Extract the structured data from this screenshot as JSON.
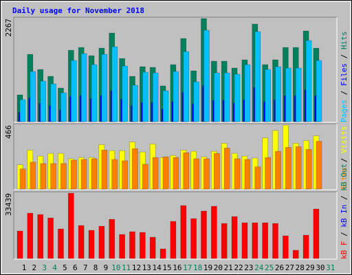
{
  "title": "Daily usage for November 2018",
  "chart_data": [
    {
      "type": "bar",
      "ylim": [
        0,
        2267
      ],
      "yticks": [
        2267
      ],
      "separator": " / ",
      "series": [
        {
          "name": "Hits",
          "color": "#00805c",
          "values": [
            589,
            1481,
            1148,
            997,
            740,
            1571,
            1632,
            1451,
            1617,
            1949,
            1390,
            997,
            1209,
            1194,
            786,
            1254,
            1829,
            1118,
            2267,
            1330,
            1330,
            1179,
            1360,
            2146,
            1254,
            1360,
            1632,
            1632,
            1995,
            1617,
            null
          ]
        },
        {
          "name": "Files",
          "color": "#0000ff",
          "values": [
            210,
            520,
            400,
            350,
            260,
            550,
            570,
            510,
            570,
            680,
            490,
            350,
            420,
            420,
            280,
            440,
            640,
            390,
            790,
            470,
            470,
            410,
            480,
            750,
            440,
            480,
            570,
            570,
            700,
            570,
            null
          ]
        },
        {
          "name": "Pages",
          "color": "#00c0ff",
          "values": [
            484,
            1103,
            892,
            831,
            635,
            1345,
            1496,
            1254,
            1481,
            1647,
            1224,
            801,
            1088,
            1073,
            680,
            1103,
            1541,
            876,
            2010,
            1073,
            1073,
            1043,
            1254,
            1979,
            1148,
            1209,
            1179,
            1179,
            1783,
            1345,
            null
          ]
        }
      ]
    },
    {
      "type": "bar",
      "ylim": [
        0,
        466
      ],
      "yticks": [
        466
      ],
      "separator": " / ",
      "series": [
        {
          "name": "Visits",
          "color": "#ffff00",
          "values": [
            177,
            284,
            240,
            260,
            260,
            221,
            230,
            230,
            324,
            280,
            280,
            343,
            270,
            329,
            230,
            245,
            284,
            275,
            235,
            275,
            334,
            260,
            240,
            226,
            373,
            427,
            466,
            334,
            353,
            388,
            null
          ]
        },
        {
          "name": "Sites",
          "color": "#ff8000",
          "values": [
            147,
            196,
            186,
            186,
            186,
            211,
            216,
            221,
            284,
            216,
            206,
            294,
            181,
            230,
            235,
            230,
            265,
            221,
            221,
            260,
            299,
            221,
            216,
            162,
            230,
            275,
            304,
            309,
            289,
            348,
            null
          ]
        }
      ]
    },
    {
      "type": "bar",
      "ylim": [
        0,
        33439
      ],
      "yticks": [
        33439
      ],
      "separator": " / ",
      "legend_extra": [
        {
          "name": "kB In",
          "color": "#0000ff"
        },
        {
          "name": "kB Out",
          "color": "#00805c"
        }
      ],
      "categories": [
        "1",
        "2",
        "3",
        "4",
        "5",
        "6",
        "7",
        "8",
        "9",
        "10",
        "11",
        "12",
        "13",
        "14",
        "15",
        "16",
        "17",
        "18",
        "19",
        "20",
        "21",
        "22",
        "23",
        "24",
        "25",
        "26",
        "27",
        "28",
        "29",
        "30",
        "31"
      ],
      "category_colors": [
        "#000000",
        "#000000",
        "#00805c",
        "#00805c",
        "#000000",
        "#000000",
        "#000000",
        "#000000",
        "#000000",
        "#00805c",
        "#00805c",
        "#000000",
        "#000000",
        "#000000",
        "#000000",
        "#000000",
        "#00805c",
        "#00805c",
        "#000000",
        "#000000",
        "#000000",
        "#000000",
        "#000000",
        "#00805c",
        "#00805c",
        "#000000",
        "#000000",
        "#000000",
        "#000000",
        "#000000",
        "#00805c"
      ],
      "series": [
        {
          "name": "kB F",
          "color": "#ff0000",
          "values": [
            14080,
            23232,
            22528,
            20768,
            15136,
            33439,
            16896,
            14432,
            16544,
            20064,
            12320,
            13728,
            13376,
            10912,
            4928,
            19008,
            27104,
            20416,
            24288,
            26752,
            17952,
            21472,
            18304,
            18304,
            18304,
            17952,
            11616,
            4224,
            11968,
            25344,
            null
          ]
        }
      ]
    }
  ]
}
